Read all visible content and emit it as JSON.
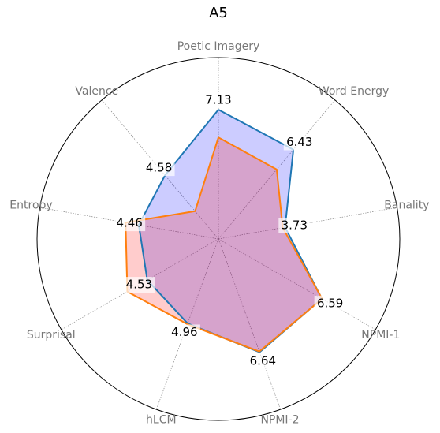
{
  "chart_data": {
    "type": "radar",
    "title": "A5",
    "categories": [
      "Poetic Imagery",
      "Word Energy",
      "Banality",
      "NPMI-1",
      "NPMI-2",
      "hLCM",
      "Surprisal",
      "Entropy",
      "Valence"
    ],
    "ylim": [
      0,
      10
    ],
    "grid": true,
    "series": [
      {
        "color": "#1f77b4",
        "fill": "#0000ff",
        "values": [
          7.13,
          6.43,
          3.73,
          6.59,
          6.64,
          4.96,
          4.53,
          4.46,
          4.58
        ]
      },
      {
        "color": "#ff7f0e",
        "fill": "#ff0000",
        "values": [
          5.6,
          5.0,
          3.6,
          6.6,
          6.6,
          5.0,
          5.8,
          5.2,
          2.0
        ]
      }
    ]
  }
}
